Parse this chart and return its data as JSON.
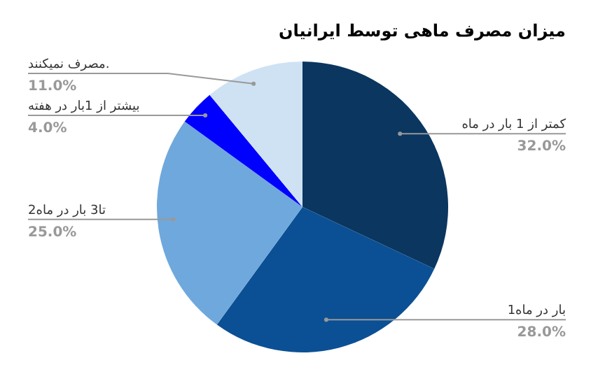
{
  "chart_data": {
    "type": "pie",
    "title": "میزان مصرف ماهی توسط ایرانیان",
    "categories": [
      "کمتر از 1 بار در ماه",
      "1بار در ماه",
      "2تا3 بار در ماه",
      "بیشتر از 1بار در هفته",
      "مصرف نمیکنند."
    ],
    "values": [
      32,
      28,
      25,
      4,
      11
    ],
    "colors": [
      "#0a3660",
      "#0b5094",
      "#6fa8dc",
      "#0000ff",
      "#cfe2f3"
    ],
    "value_labels": [
      "32.0%",
      "28.0%",
      "25.0%",
      "4.0%",
      "11.0%"
    ],
    "legend": false
  }
}
